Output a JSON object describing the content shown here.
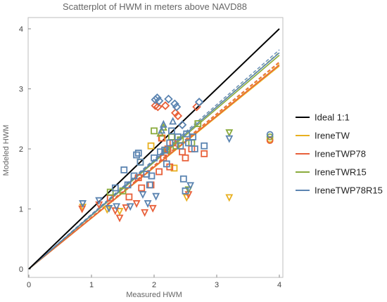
{
  "chart_data": {
    "type": "scatter",
    "title": "Scatterplot of HWM in meters above NAVD88",
    "xlabel": "Measured   HWM",
    "ylabel": "Modeled   HWM",
    "xlim": [
      0,
      4
    ],
    "ylim": [
      0,
      4
    ],
    "xticks": [
      "0",
      "1",
      "2",
      "3",
      "4"
    ],
    "yticks": [
      "0",
      "1",
      "2",
      "3",
      "4"
    ],
    "grid": false,
    "legend_position": "right",
    "ideal_line": {
      "name": "Ideal 1:1",
      "color": "#000000",
      "x": [
        0,
        4
      ],
      "y": [
        0,
        4
      ]
    },
    "series": [
      {
        "name": "IreneTW",
        "color": "#e8b020",
        "fit_end": 3.38,
        "points": [
          [
            0.86,
            1.04,
            "tri-down"
          ],
          [
            1.25,
            1.0,
            "tri-down"
          ],
          [
            1.45,
            0.97,
            "tri-down"
          ],
          [
            1.95,
            2.05,
            "square"
          ],
          [
            2.13,
            2.18,
            "square"
          ],
          [
            2.32,
            1.68,
            "square"
          ],
          [
            2.52,
            1.2,
            "tri-down"
          ],
          [
            3.2,
            1.2,
            "tri-down"
          ],
          [
            3.85,
            2.16,
            "circle"
          ]
        ]
      },
      {
        "name": "IreneTWP78",
        "color": "#e8603a",
        "fit_end": 3.4,
        "points": [
          [
            0.85,
            1.01,
            "tri-down"
          ],
          [
            1.12,
            1.08,
            "tri-down"
          ],
          [
            1.3,
            1.18,
            "square"
          ],
          [
            1.38,
            0.98,
            "tri-down"
          ],
          [
            1.45,
            0.86,
            "tri-down"
          ],
          [
            1.55,
            1.03,
            "tri-down"
          ],
          [
            1.6,
            1.2,
            "square"
          ],
          [
            1.72,
            1.1,
            "tri-down"
          ],
          [
            1.75,
            1.52,
            "square"
          ],
          [
            1.8,
            1.35,
            "square"
          ],
          [
            1.85,
            0.95,
            "tri-down"
          ],
          [
            1.95,
            1.4,
            "square"
          ],
          [
            1.98,
            1.02,
            "tri-down"
          ],
          [
            2.02,
            2.72,
            "diamond"
          ],
          [
            2.06,
            2.7,
            "diamond"
          ],
          [
            2.08,
            1.62,
            "square"
          ],
          [
            2.12,
            2.18,
            "square"
          ],
          [
            2.15,
            1.85,
            "square"
          ],
          [
            2.18,
            2.72,
            "diamond"
          ],
          [
            2.22,
            2.0,
            "square"
          ],
          [
            2.25,
            1.7,
            "square"
          ],
          [
            2.3,
            2.1,
            "square"
          ],
          [
            2.34,
            2.6,
            "diamond"
          ],
          [
            2.38,
            2.55,
            "diamond"
          ],
          [
            2.45,
            1.95,
            "square"
          ],
          [
            2.5,
            1.85,
            "square"
          ],
          [
            2.55,
            1.25,
            "tri-down"
          ],
          [
            2.6,
            2.0,
            "square"
          ],
          [
            2.68,
            2.7,
            "diamond"
          ],
          [
            2.8,
            1.92,
            "square"
          ],
          [
            3.85,
            2.14,
            "circle"
          ]
        ]
      },
      {
        "name": "IreneTWR15",
        "color": "#8aab3c",
        "fit_end": 3.56,
        "points": [
          [
            1.3,
            1.28,
            "square"
          ],
          [
            1.5,
            1.3,
            "square"
          ],
          [
            1.78,
            1.78,
            "square"
          ],
          [
            2.0,
            2.3,
            "square"
          ],
          [
            2.1,
            2.25,
            "tri-up"
          ],
          [
            2.15,
            2.35,
            "tri-up"
          ],
          [
            2.2,
            1.98,
            "square"
          ],
          [
            2.28,
            2.2,
            "square"
          ],
          [
            2.35,
            2.05,
            "square"
          ],
          [
            2.42,
            2.15,
            "square"
          ],
          [
            2.55,
            1.33,
            "tri-down"
          ],
          [
            2.6,
            2.1,
            "square"
          ],
          [
            2.7,
            2.42,
            "square"
          ],
          [
            3.2,
            2.28,
            "tri-down"
          ],
          [
            3.85,
            2.2,
            "circle"
          ]
        ]
      },
      {
        "name": "IreneTWP78R15",
        "color": "#5b84b1",
        "fit_end": 3.6,
        "points": [
          [
            0.86,
            1.1,
            "tri-down"
          ],
          [
            1.12,
            1.15,
            "tri-down"
          ],
          [
            1.28,
            1.02,
            "tri-down"
          ],
          [
            1.38,
            1.35,
            "square"
          ],
          [
            1.4,
            1.05,
            "tri-down"
          ],
          [
            1.52,
            1.65,
            "square"
          ],
          [
            1.58,
            1.4,
            "square"
          ],
          [
            1.62,
            1.05,
            "tri-down"
          ],
          [
            1.68,
            1.55,
            "square"
          ],
          [
            1.72,
            1.9,
            "square"
          ],
          [
            1.75,
            1.93,
            "square"
          ],
          [
            1.78,
            1.78,
            "square"
          ],
          [
            1.82,
            1.25,
            "tri-down"
          ],
          [
            1.88,
            1.58,
            "square"
          ],
          [
            1.9,
            1.1,
            "tri-down"
          ],
          [
            1.93,
            1.4,
            "square"
          ],
          [
            1.96,
            1.55,
            "square"
          ],
          [
            2.0,
            1.85,
            "square"
          ],
          [
            2.02,
            2.82,
            "diamond"
          ],
          [
            2.03,
            1.22,
            "tri-down"
          ],
          [
            2.05,
            2.85,
            "diamond"
          ],
          [
            2.08,
            2.8,
            "diamond"
          ],
          [
            2.1,
            1.95,
            "square"
          ],
          [
            2.12,
            2.3,
            "tri-up"
          ],
          [
            2.15,
            2.4,
            "tri-up"
          ],
          [
            2.17,
            1.98,
            "square"
          ],
          [
            2.2,
            1.75,
            "square"
          ],
          [
            2.23,
            2.83,
            "diamond"
          ],
          [
            2.25,
            2.1,
            "square"
          ],
          [
            2.28,
            2.3,
            "square"
          ],
          [
            2.3,
            2.45,
            "tri-up"
          ],
          [
            2.33,
            2.75,
            "diamond"
          ],
          [
            2.36,
            2.7,
            "diamond"
          ],
          [
            2.38,
            2.2,
            "square"
          ],
          [
            2.42,
            2.05,
            "square"
          ],
          [
            2.45,
            2.4,
            "diamond"
          ],
          [
            2.47,
            1.5,
            "square"
          ],
          [
            2.5,
            1.3,
            "square"
          ],
          [
            2.52,
            2.25,
            "square"
          ],
          [
            2.55,
            2.1,
            "square"
          ],
          [
            2.58,
            1.4,
            "tri-down"
          ],
          [
            2.62,
            2.2,
            "square"
          ],
          [
            2.65,
            2.0,
            "square"
          ],
          [
            2.72,
            2.78,
            "diamond"
          ],
          [
            2.8,
            2.05,
            "square"
          ],
          [
            3.2,
            2.18,
            "tri-down"
          ],
          [
            3.85,
            2.24,
            "circle"
          ]
        ]
      }
    ]
  }
}
